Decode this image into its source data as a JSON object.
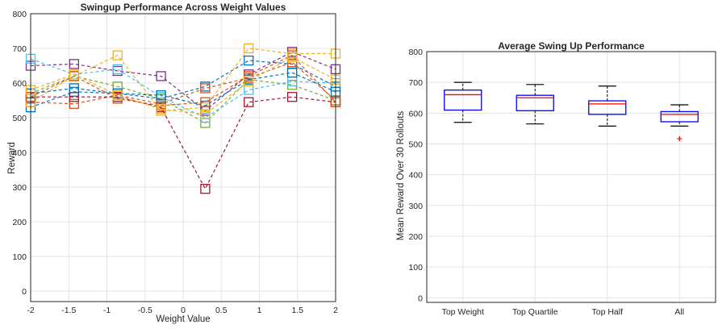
{
  "chart_data": [
    {
      "type": "line",
      "title": "Swingup Performance Across Weight Values",
      "xlabel": "Weight Value",
      "ylabel": "Reward",
      "xlim": [
        -2,
        2
      ],
      "ylim": [
        -30,
        800
      ],
      "x": [
        -2,
        -1.43,
        -0.86,
        -0.29,
        0.29,
        0.86,
        1.43,
        2
      ],
      "xticks": [
        "-2",
        "-1.5",
        "-1",
        "-0.5",
        "0",
        "0.5",
        "1",
        "1.5",
        "2"
      ],
      "yticks": [
        "0",
        "100",
        "200",
        "300",
        "400",
        "500",
        "600",
        "700",
        "800"
      ],
      "grid": true,
      "marker": "square",
      "linestyle": "dashed",
      "series": [
        {
          "color": "#0072BD",
          "values": [
            530,
            575,
            570,
            555,
            590,
            665,
            655,
            590
          ]
        },
        {
          "color": "#D95319",
          "values": [
            545,
            540,
            565,
            540,
            585,
            615,
            660,
            550
          ]
        },
        {
          "color": "#EDB120",
          "values": [
            545,
            620,
            680,
            520,
            530,
            700,
            685,
            685
          ]
        },
        {
          "color": "#7E2F8E",
          "values": [
            650,
            655,
            635,
            620,
            520,
            625,
            690,
            640
          ]
        },
        {
          "color": "#77AC30",
          "values": [
            570,
            620,
            590,
            555,
            485,
            610,
            595,
            550
          ]
        },
        {
          "color": "#4DBEEE",
          "values": [
            670,
            625,
            640,
            560,
            500,
            580,
            605,
            600
          ]
        },
        {
          "color": "#A2142F",
          "values": [
            560,
            560,
            560,
            530,
            295,
            545,
            560,
            545
          ]
        },
        {
          "color": "#0072BD",
          "values": [
            570,
            585,
            570,
            565,
            535,
            610,
            630,
            575
          ]
        },
        {
          "color": "#D95319",
          "values": [
            560,
            620,
            555,
            535,
            545,
            620,
            680,
            545
          ]
        },
        {
          "color": "#EDB120",
          "values": [
            580,
            625,
            565,
            525,
            510,
            605,
            675,
            610
          ]
        }
      ]
    },
    {
      "type": "box",
      "title": "Average Swing Up Performance",
      "xlabel": "",
      "ylabel": "Mean Reward Over 30 Rollouts",
      "ylim": [
        -15,
        800
      ],
      "yticks": [
        "0",
        "100",
        "200",
        "300",
        "400",
        "500",
        "600",
        "700",
        "800"
      ],
      "categories": [
        "Top Weight",
        "Top Quartile",
        "Top Half",
        "All"
      ],
      "grid": true,
      "box_color": "#0000FF",
      "median_color": "#FF0000",
      "outlier_color": "#FF0000",
      "boxes": [
        {
          "whisker_low": 570,
          "q1": 610,
          "median": 660,
          "q3": 675,
          "whisker_high": 700,
          "outliers": []
        },
        {
          "whisker_low": 565,
          "q1": 608,
          "median": 650,
          "q3": 658,
          "whisker_high": 693,
          "outliers": []
        },
        {
          "whisker_low": 558,
          "q1": 596,
          "median": 630,
          "q3": 640,
          "whisker_high": 688,
          "outliers": []
        },
        {
          "whisker_low": 558,
          "q1": 572,
          "median": 596,
          "q3": 605,
          "whisker_high": 627,
          "outliers": [
            517
          ]
        }
      ]
    }
  ]
}
